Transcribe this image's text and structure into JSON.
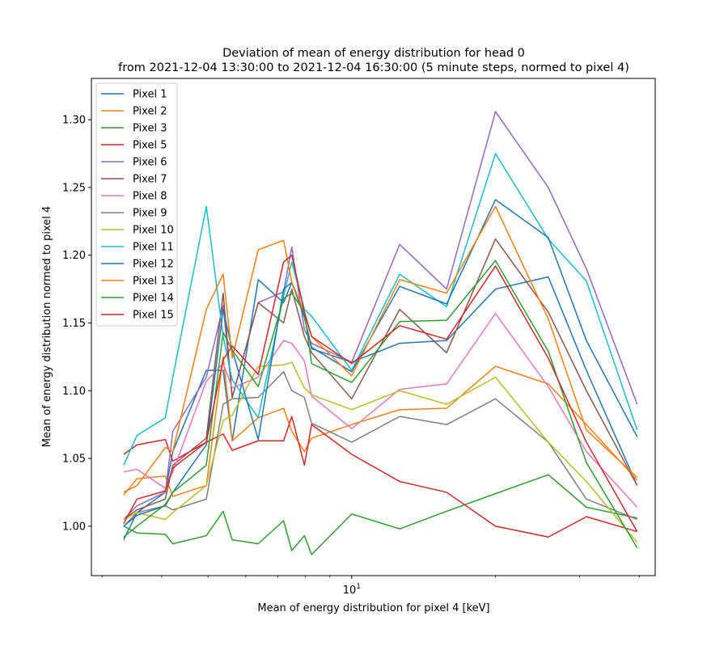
{
  "chart_data": {
    "type": "line",
    "title_line1": "Deviation of mean of energy distribution for head 0",
    "title_line2": "from 2021-12-04 13:30:00 to 2021-12-04 16:30:00 (5 minute steps, normed to pixel 4)",
    "xlabel": "Mean of energy distribution for pixel 4 [keV]",
    "ylabel": "Mean of energy distribution normed to pixel 4",
    "x_scale": "log",
    "xlim": [
      2.85,
      43.2
    ],
    "ylim": [
      0.9635,
      1.3305
    ],
    "y_ticks": [
      1.0,
      1.05,
      1.1,
      1.15,
      1.2,
      1.25,
      1.3
    ],
    "y_tick_labels": [
      "1.00",
      "1.05",
      "1.10",
      "1.15",
      "1.20",
      "1.25",
      "1.30"
    ],
    "x_major_ticks": [
      10
    ],
    "x_major_tick_labels": [
      "10"
    ],
    "x_minor_ticks": [
      3,
      4,
      5,
      6,
      7,
      8,
      9,
      20,
      30,
      40
    ],
    "grid": false,
    "legend_position": "upper-left",
    "x": [
      3.33,
      3.55,
      4.07,
      4.22,
      4.96,
      5.38,
      5.62,
      6.37,
      7.2,
      7.49,
      7.96,
      8.24,
      10.0,
      12.6,
      15.8,
      20.0,
      25.8,
      31.0,
      39.6
    ],
    "series": [
      {
        "name": "Pixel 1",
        "color": "#1f77b4",
        "values": [
          0.99,
          1.01,
          1.025,
          1.055,
          1.115,
          1.115,
          1.063,
          1.182,
          1.165,
          1.18,
          1.155,
          1.131,
          1.121,
          1.135,
          1.137,
          1.175,
          1.184,
          1.115,
          1.03
        ]
      },
      {
        "name": "Pixel 2",
        "color": "#ff7f0e",
        "values": [
          1.023,
          1.035,
          1.037,
          1.022,
          1.03,
          1.125,
          1.063,
          1.08,
          1.087,
          1.07,
          1.055,
          1.065,
          1.075,
          1.086,
          1.087,
          1.118,
          1.105,
          1.075,
          1.034
        ]
      },
      {
        "name": "Pixel 3",
        "color": "#2ca02c",
        "values": [
          1.0,
          0.995,
          0.994,
          0.987,
          0.993,
          1.011,
          0.99,
          0.987,
          1.004,
          0.982,
          0.993,
          0.979,
          1.009,
          0.998,
          1.011,
          1.024,
          1.038,
          1.014,
          1.006
        ]
      },
      {
        "name": "Pixel 5",
        "color": "#d62728",
        "values": [
          1.053,
          1.06,
          1.064,
          1.048,
          1.062,
          1.068,
          1.056,
          1.063,
          1.063,
          1.081,
          1.045,
          1.075,
          1.053,
          1.033,
          1.025,
          1.0,
          0.992,
          1.007,
          0.996
        ]
      },
      {
        "name": "Pixel 6",
        "color": "#9467bd",
        "values": [
          1.005,
          1.015,
          1.025,
          1.07,
          1.11,
          1.163,
          1.095,
          1.165,
          1.173,
          1.206,
          1.145,
          1.135,
          1.121,
          1.208,
          1.175,
          1.306,
          1.25,
          1.19,
          1.09
        ]
      },
      {
        "name": "Pixel 7",
        "color": "#8c564b",
        "values": [
          1.005,
          1.012,
          1.02,
          1.045,
          1.065,
          1.172,
          1.095,
          1.165,
          1.15,
          1.175,
          1.14,
          1.128,
          1.094,
          1.16,
          1.128,
          1.212,
          1.158,
          1.1,
          1.03
        ]
      },
      {
        "name": "Pixel 8",
        "color": "#e377c2",
        "values": [
          1.04,
          1.042,
          1.028,
          1.04,
          1.107,
          1.12,
          1.102,
          1.11,
          1.137,
          1.135,
          1.122,
          1.096,
          1.072,
          1.101,
          1.105,
          1.157,
          1.103,
          1.055,
          1.014
        ]
      },
      {
        "name": "Pixel 9",
        "color": "#7f7f7f",
        "values": [
          1.0,
          1.01,
          1.015,
          1.012,
          1.02,
          1.09,
          1.094,
          1.095,
          1.114,
          1.1,
          1.095,
          1.076,
          1.062,
          1.081,
          1.075,
          1.094,
          1.062,
          1.02,
          1.005
        ]
      },
      {
        "name": "Pixel 10",
        "color": "#bcbd22",
        "values": [
          1.005,
          1.01,
          1.005,
          1.01,
          1.03,
          1.078,
          1.082,
          1.118,
          1.119,
          1.121,
          1.102,
          1.097,
          1.086,
          1.1,
          1.09,
          1.11,
          1.062,
          1.033,
          0.988
        ]
      },
      {
        "name": "Pixel 11",
        "color": "#17becf",
        "values": [
          1.045,
          1.067,
          1.08,
          1.11,
          1.236,
          1.14,
          1.108,
          1.08,
          1.17,
          1.195,
          1.16,
          1.155,
          1.115,
          1.186,
          1.162,
          1.275,
          1.212,
          1.181,
          1.071
        ]
      },
      {
        "name": "Pixel 12",
        "color": "#1f77b4",
        "values": [
          1.0,
          1.008,
          1.015,
          1.025,
          1.06,
          1.16,
          1.13,
          1.064,
          1.175,
          1.18,
          1.154,
          1.132,
          1.114,
          1.177,
          1.164,
          1.241,
          1.213,
          1.137,
          1.066
        ]
      },
      {
        "name": "Pixel 13",
        "color": "#ff7f0e",
        "values": [
          1.025,
          1.03,
          1.058,
          1.055,
          1.16,
          1.186,
          1.124,
          1.204,
          1.211,
          1.18,
          1.158,
          1.14,
          1.111,
          1.182,
          1.172,
          1.236,
          1.153,
          1.071,
          1.036
        ]
      },
      {
        "name": "Pixel 14",
        "color": "#2ca02c",
        "values": [
          0.992,
          1.0,
          1.016,
          1.025,
          1.045,
          1.143,
          1.13,
          1.103,
          1.168,
          1.172,
          1.158,
          1.12,
          1.106,
          1.151,
          1.152,
          1.196,
          1.129,
          1.047,
          0.984
        ]
      },
      {
        "name": "Pixel 15",
        "color": "#d62728",
        "values": [
          1.002,
          1.02,
          1.026,
          1.043,
          1.062,
          1.123,
          1.133,
          1.112,
          1.195,
          1.2,
          1.158,
          1.14,
          1.12,
          1.148,
          1.138,
          1.192,
          1.124,
          1.062,
          0.996
        ]
      }
    ]
  }
}
